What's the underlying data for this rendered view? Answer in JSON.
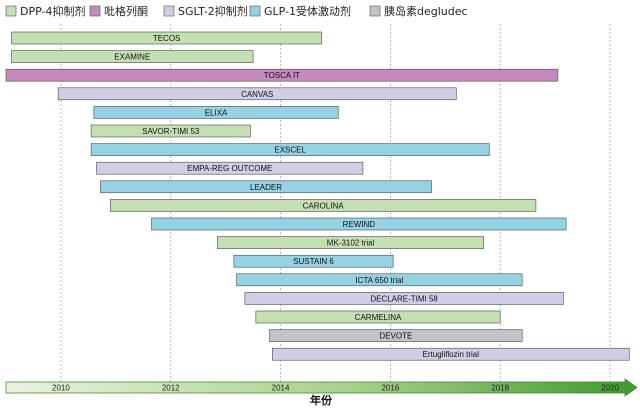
{
  "chart_data": {
    "type": "bar",
    "orientation": "horizontal-timeline",
    "xlabel": "年份",
    "title": "",
    "ylabel": "",
    "xlim": [
      2009.0,
      2020.4
    ],
    "ticks": [
      2010,
      2012,
      2014,
      2016,
      2018,
      2020
    ],
    "grid": true,
    "legend_position": "top",
    "legend": [
      {
        "key": "dpp4",
        "name": "DPP-4抑制剂",
        "color": "#c4dfb1"
      },
      {
        "key": "glp1ra",
        "name": "吡格列酮",
        "color": "#c489bd"
      },
      {
        "key": "sglt2",
        "name": "SGLT-2抑制剂",
        "color": "#d3cce6"
      },
      {
        "key": "glp1",
        "name": "GLP-1受体激动剂",
        "color": "#95d2e3"
      },
      {
        "key": "insulin",
        "name": "胰岛素degludec",
        "color": "#c3c4c6"
      }
    ],
    "bars": [
      {
        "label": "TECOS",
        "start": 2009.1,
        "end": 2014.75,
        "group": "dpp4"
      },
      {
        "label": "EXAMINE",
        "start": 2009.1,
        "end": 2013.5,
        "group": "dpp4"
      },
      {
        "label": "TOSCA IT",
        "start": 2009.0,
        "end": 2019.05,
        "group": "glp1ra"
      },
      {
        "label": "CANVAS",
        "start": 2009.95,
        "end": 2017.2,
        "group": "sglt2"
      },
      {
        "label": "ELIXA",
        "start": 2010.6,
        "end": 2015.05,
        "group": "glp1"
      },
      {
        "label": "SAVOR-TIMI 53",
        "start": 2010.55,
        "end": 2013.45,
        "group": "dpp4"
      },
      {
        "label": "EXSCEL",
        "start": 2010.55,
        "end": 2017.8,
        "group": "glp1"
      },
      {
        "label": "EMPA-REG OUTCOME",
        "start": 2010.65,
        "end": 2015.5,
        "group": "sglt2"
      },
      {
        "label": "LEADER",
        "start": 2010.72,
        "end": 2016.75,
        "group": "glp1"
      },
      {
        "label": "CAROLINA",
        "start": 2010.9,
        "end": 2018.65,
        "group": "dpp4"
      },
      {
        "label": "REWIND",
        "start": 2011.65,
        "end": 2019.2,
        "group": "glp1"
      },
      {
        "label": "MK-3102 trial",
        "start": 2012.85,
        "end": 2017.7,
        "group": "dpp4"
      },
      {
        "label": "SUSTAIN 6",
        "start": 2013.15,
        "end": 2016.05,
        "group": "glp1"
      },
      {
        "label": "ICTA 650 trial",
        "start": 2013.2,
        "end": 2018.4,
        "group": "glp1"
      },
      {
        "label": "DECLARE-TIMI 58",
        "start": 2013.35,
        "end": 2019.15,
        "group": "sglt2"
      },
      {
        "label": "CARMELINA",
        "start": 2013.55,
        "end": 2018.0,
        "group": "dpp4"
      },
      {
        "label": "DEVOTE",
        "start": 2013.8,
        "end": 2018.4,
        "group": "insulin"
      },
      {
        "label": "Ertugliflozin trial",
        "start": 2013.85,
        "end": 2020.35,
        "group": "sglt2"
      }
    ]
  }
}
